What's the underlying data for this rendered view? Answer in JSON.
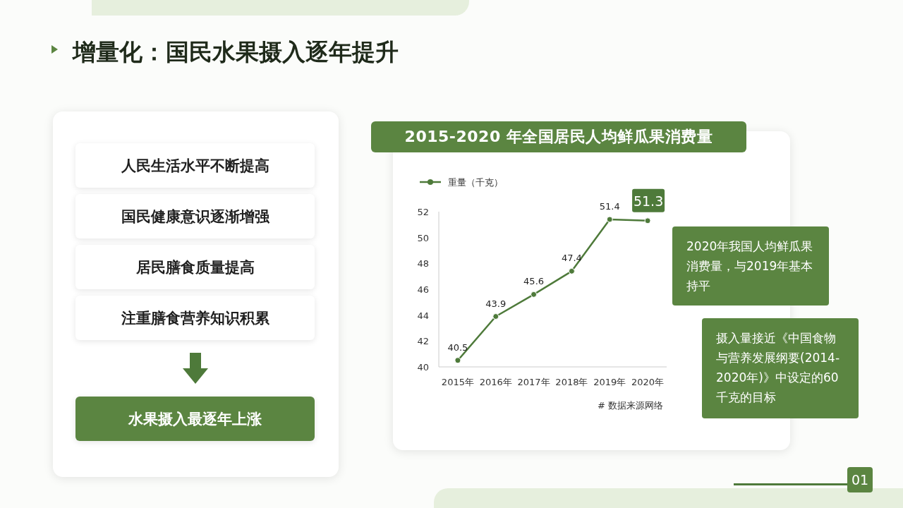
{
  "chart_data": {
    "type": "line",
    "title": "2015-2020 年全国居民人均鲜瓜果消费量",
    "categories": [
      "2015年",
      "2016年",
      "2017年",
      "2018年",
      "2019年",
      "2020年"
    ],
    "series": [
      {
        "name": "重量（千克）",
        "color": "#4e7a3a",
        "values": [
          40.5,
          43.9,
          45.6,
          47.4,
          51.4,
          51.3
        ]
      }
    ],
    "ylim": [
      40,
      52
    ],
    "yticks": [
      40,
      42,
      44,
      46,
      48,
      50,
      52
    ],
    "data_labels": true,
    "marker": "circle",
    "legend": "top left",
    "grid": false,
    "annotations": [
      "增量化：国民水果摄入逐年提升",
      "人民生活水平不断提高",
      "国民健康意识逐渐增强",
      "居民膳食质量提高",
      "注重膳食营养知识积累",
      "水果摄入最逐年上涨",
      "2020年我国人均鲜瓜果消费量，与2019年基本持平",
      "摄入量接近《中国食物与营养发展纲要(2014-2020年)》中设定的60千克的目标",
      "# 数据来源网络",
      "01"
    ]
  }
}
